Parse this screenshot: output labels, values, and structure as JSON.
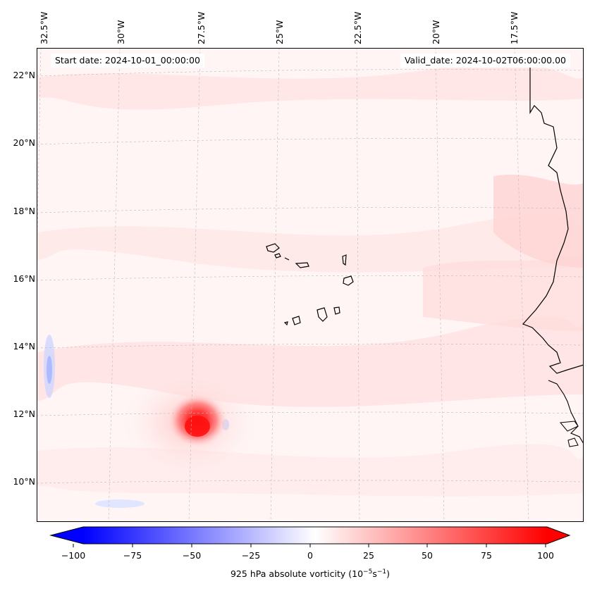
{
  "map": {
    "title_left": "Start date: 2024-10-01_00:00:00",
    "title_right": "Valid_date: 2024-10-02T06:00:00.00",
    "field": "925 hPa absolute vorticity",
    "lon_labels": [
      "32.5°W",
      "30°W",
      "27.5°W",
      "25°W",
      "22.5°W",
      "20°W",
      "17.5°W"
    ],
    "lat_labels": [
      "22°N",
      "20°N",
      "18°N",
      "16°N",
      "14°N",
      "12°N",
      "10°N"
    ],
    "features": [
      "Cabo Verde islands",
      "West African coastline",
      "vorticity maximum near 11.5°N 27.5°W"
    ]
  },
  "colorbar": {
    "min": -100,
    "max": 100,
    "ticks": [
      "−100",
      "−75",
      "−50",
      "−25",
      "0",
      "25",
      "50",
      "75",
      "100"
    ],
    "label_main": "925 hPa absolute vorticity (10",
    "label_exp1": "−5",
    "label_mid": "s",
    "label_exp2": "−1",
    "label_end": ")",
    "colors": {
      "negative": "#0000ff",
      "zero": "#ffffff",
      "positive": "#ff0000"
    }
  },
  "chart_data": {
    "type": "heatmap",
    "title": "925 hPa absolute vorticity",
    "x_range": [
      -33,
      -15
    ],
    "y_range": [
      9,
      22.8
    ],
    "units": "10^-5 s^-1",
    "color_range": [
      -100,
      100
    ],
    "max_value_location": {
      "lat": 11.5,
      "lon": -27.5,
      "value": 100
    }
  }
}
